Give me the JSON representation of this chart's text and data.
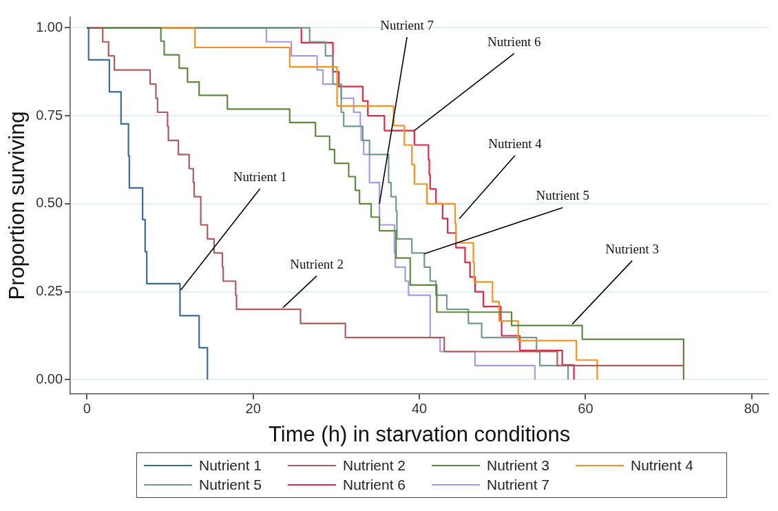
{
  "chart_data": {
    "type": "step",
    "xlabel": "Time (h) in starvation conditions",
    "ylabel": "Proportion surviving",
    "xlim": [
      -2,
      82
    ],
    "ylim": [
      -0.04,
      1.03
    ],
    "xticks": [
      0,
      20,
      40,
      60,
      80
    ],
    "yticks": [
      {
        "value": 0,
        "label": "0.00"
      },
      {
        "value": 0.25,
        "label": "0.25"
      },
      {
        "value": 0.5,
        "label": "0.50"
      },
      {
        "value": 0.75,
        "label": "0.75"
      },
      {
        "value": 1,
        "label": "1.00"
      }
    ],
    "grid": "y",
    "legend": "bottom",
    "marker": "none",
    "line_style": "solid",
    "series": [
      {
        "name": "Nutrient 1",
        "color": "#3a6a96",
        "x": [
          0,
          0.2,
          2.7,
          4.1,
          5.0,
          5.1,
          6.7,
          7.0,
          7.2,
          11.2,
          13.5,
          14.5
        ],
        "values": [
          1,
          0.909,
          0.818,
          0.727,
          0.636,
          0.545,
          0.455,
          0.364,
          0.273,
          0.182,
          0.091,
          0
        ]
      },
      {
        "name": "Nutrient 2",
        "color": "#b05a5a",
        "x": [
          0,
          1.9,
          2.6,
          3.3,
          7.6,
          8.3,
          8.5,
          9.7,
          9.8,
          11.0,
          12.3,
          12.8,
          12.9,
          13.7,
          14.5,
          15.3,
          16.3,
          16.4,
          17.9,
          18.0,
          25.7,
          31.1,
          43.0,
          56.6,
          71.8
        ],
        "values": [
          1,
          0.96,
          0.92,
          0.88,
          0.84,
          0.8,
          0.76,
          0.72,
          0.68,
          0.64,
          0.6,
          0.56,
          0.52,
          0.44,
          0.4,
          0.36,
          0.32,
          0.28,
          0.24,
          0.2,
          0.16,
          0.12,
          0.08,
          0.04,
          0.04
        ]
      },
      {
        "name": "Nutrient 3",
        "color": "#5b8a3c",
        "x": [
          0,
          8.9,
          9.3,
          11.1,
          12.1,
          13.5,
          16.9,
          24.4,
          27.5,
          29.2,
          29.8,
          31.5,
          32.3,
          32.8,
          34.2,
          35.2,
          37.2,
          38.9,
          42.1,
          51.1,
          59.6,
          71.8
        ],
        "values": [
          1,
          0.962,
          0.923,
          0.885,
          0.846,
          0.808,
          0.769,
          0.731,
          0.692,
          0.654,
          0.615,
          0.577,
          0.538,
          0.5,
          0.462,
          0.423,
          0.346,
          0.269,
          0.192,
          0.154,
          0.115,
          0
        ]
      },
      {
        "name": "Nutrient 4",
        "color": "#f5921e",
        "x": [
          0,
          13.0,
          24.4,
          30.1,
          36.9,
          38.2,
          39.1,
          39.4,
          40.9,
          44.3,
          44.4,
          46.5,
          46.6,
          48.8,
          49.6,
          51.9,
          58.9,
          61.4
        ],
        "values": [
          1,
          0.944,
          0.889,
          0.778,
          0.722,
          0.667,
          0.611,
          0.556,
          0.5,
          0.444,
          0.389,
          0.333,
          0.278,
          0.222,
          0.167,
          0.111,
          0.056,
          0
        ]
      },
      {
        "name": "Nutrient 5",
        "color": "#6e9a8a",
        "x": [
          0,
          26.8,
          28.7,
          29.6,
          30.6,
          30.9,
          33.2,
          34.0,
          36.3,
          36.6,
          37.2,
          37.3,
          39.1,
          40.6,
          41.3,
          42.0,
          43.3,
          45.9,
          47.5,
          54.1,
          54.5,
          57.9
        ],
        "values": [
          1,
          0.96,
          0.92,
          0.84,
          0.76,
          0.72,
          0.68,
          0.64,
          0.56,
          0.52,
          0.48,
          0.4,
          0.36,
          0.32,
          0.28,
          0.24,
          0.2,
          0.16,
          0.12,
          0.08,
          0.04,
          0
        ]
      },
      {
        "name": "Nutrient 6",
        "color": "#dc2846",
        "x": [
          0,
          25.8,
          29.6,
          30.3,
          33.2,
          33.8,
          35.8,
          39.4,
          41.1,
          41.2,
          41.3,
          42.0,
          42.8,
          43.4,
          44.4,
          45.5,
          46.1,
          46.7,
          47.7,
          49.8,
          49.9,
          52.1,
          57.2,
          58.6
        ],
        "values": [
          1,
          0.958,
          0.875,
          0.833,
          0.792,
          0.75,
          0.708,
          0.667,
          0.625,
          0.583,
          0.542,
          0.5,
          0.458,
          0.417,
          0.375,
          0.333,
          0.292,
          0.25,
          0.208,
          0.167,
          0.125,
          0.083,
          0.042,
          0
        ]
      },
      {
        "name": "Nutrient 7",
        "color": "#a19be6",
        "x": [
          0,
          21.6,
          24.6,
          27.7,
          28.4,
          30.6,
          32.1,
          32.9,
          33.0,
          33.3,
          34.0,
          35.2,
          37.0,
          37.1,
          38.3,
          38.7,
          41.3,
          42.5,
          46.7,
          53.9
        ],
        "values": [
          1,
          0.96,
          0.92,
          0.88,
          0.84,
          0.8,
          0.76,
          0.72,
          0.68,
          0.64,
          0.56,
          0.44,
          0.36,
          0.32,
          0.28,
          0.24,
          0.12,
          0.08,
          0.04,
          0
        ]
      }
    ],
    "annotations": [
      {
        "text": "Nutrient 1",
        "x": 11.3,
        "y": 0.255
      },
      {
        "text": "Nutrient 2",
        "x": 23.6,
        "y": 0.205
      },
      {
        "text": "Nutrient 7",
        "x": 35.2,
        "y": 0.5
      },
      {
        "text": "Nutrient 6",
        "x": 39.4,
        "y": 0.708
      },
      {
        "text": "Nutrient 4",
        "x": 44.8,
        "y": 0.457
      },
      {
        "text": "Nutrient 5",
        "x": 40.6,
        "y": 0.358
      },
      {
        "text": "Nutrient 3",
        "x": 58.4,
        "y": 0.158
      }
    ]
  }
}
